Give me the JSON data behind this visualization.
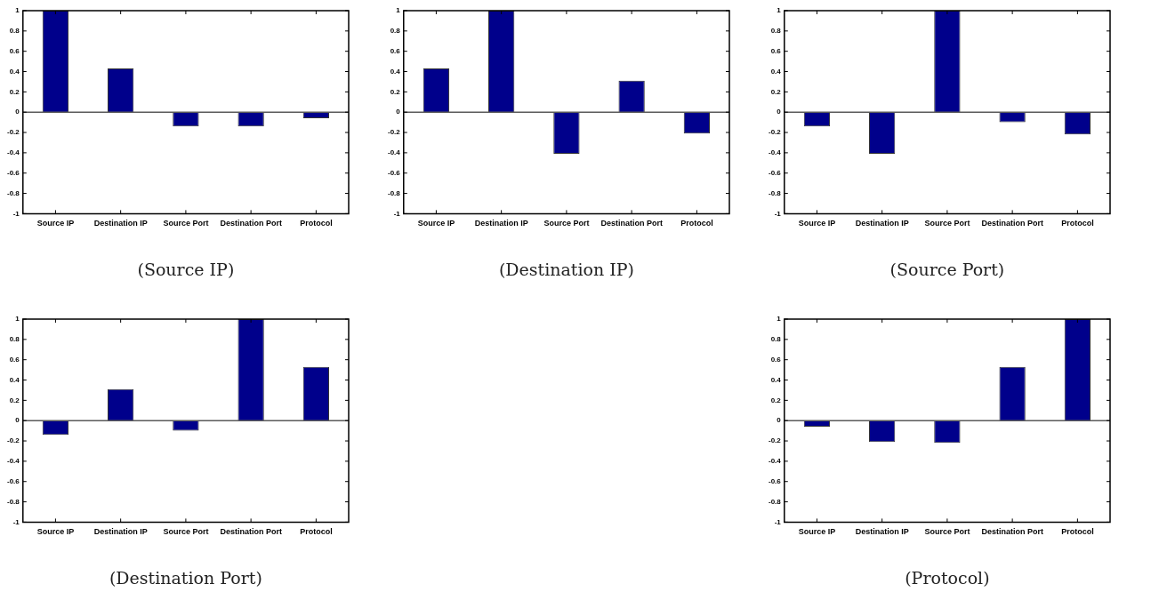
{
  "chart_data": [
    {
      "type": "bar",
      "xlabel": "(Source IP)",
      "categories": [
        "Source IP",
        "Destination IP",
        "Source Port",
        "Destination Port",
        "Protocol"
      ],
      "values": [
        1,
        0.43,
        -0.14,
        -0.14,
        -0.06
      ],
      "color": "#00008b",
      "ylim": [
        -1,
        1
      ],
      "yticks": [
        -1,
        -0.8,
        -0.6,
        -0.4,
        -0.2,
        0,
        0.2,
        0.4,
        0.6,
        0.8,
        1
      ],
      "grid": false,
      "legend": false,
      "ref_lines": [
        {
          "axis": "y",
          "value": 0,
          "color": "#5a5a5a"
        }
      ]
    },
    {
      "type": "bar",
      "xlabel": "(Destination IP)",
      "categories": [
        "Source IP",
        "Destination IP",
        "Source Port",
        "Destination Port",
        "Protocol"
      ],
      "values": [
        0.43,
        1,
        -0.41,
        0.31,
        -0.21
      ],
      "color": "#00008b",
      "ylim": [
        -1,
        1
      ],
      "yticks": [
        -1,
        -0.8,
        -0.6,
        -0.4,
        -0.2,
        0,
        0.2,
        0.4,
        0.6,
        0.8,
        1
      ],
      "grid": false,
      "legend": false,
      "ref_lines": [
        {
          "axis": "y",
          "value": 0,
          "color": "#5a5a5a"
        }
      ]
    },
    {
      "type": "bar",
      "xlabel": "(Source Port)",
      "categories": [
        "Source IP",
        "Destination IP",
        "Source Port",
        "Destination Port",
        "Protocol"
      ],
      "values": [
        -0.14,
        -0.41,
        1,
        -0.1,
        -0.22
      ],
      "color": "#00008b",
      "ylim": [
        -1,
        1
      ],
      "yticks": [
        -1,
        -0.8,
        -0.6,
        -0.4,
        -0.2,
        0,
        0.2,
        0.4,
        0.6,
        0.8,
        1
      ],
      "grid": false,
      "legend": false,
      "ref_lines": [
        {
          "axis": "y",
          "value": 0,
          "color": "#5a5a5a"
        }
      ]
    },
    {
      "type": "bar",
      "xlabel": "(Destination Port)",
      "categories": [
        "Source IP",
        "Destination IP",
        "Source Port",
        "Destination Port",
        "Protocol"
      ],
      "values": [
        -0.14,
        0.31,
        -0.1,
        1,
        0.53
      ],
      "color": "#00008b",
      "ylim": [
        -1,
        1
      ],
      "yticks": [
        -1,
        -0.8,
        -0.6,
        -0.4,
        -0.2,
        0,
        0.2,
        0.4,
        0.6,
        0.8,
        1
      ],
      "grid": false,
      "legend": false,
      "ref_lines": [
        {
          "axis": "y",
          "value": 0,
          "color": "#5a5a5a"
        }
      ]
    },
    {
      "type": "bar",
      "xlabel": "(Protocol)",
      "categories": [
        "Source IP",
        "Destination IP",
        "Source Port",
        "Destination Port",
        "Protocol"
      ],
      "values": [
        -0.06,
        -0.21,
        -0.22,
        0.53,
        1
      ],
      "color": "#00008b",
      "ylim": [
        -1,
        1
      ],
      "yticks": [
        -1,
        -0.8,
        -0.6,
        -0.4,
        -0.2,
        0,
        0.2,
        0.4,
        0.6,
        0.8,
        1
      ],
      "grid": false,
      "legend": false,
      "ref_lines": [
        {
          "axis": "y",
          "value": 0,
          "color": "#5a5a5a"
        }
      ]
    }
  ]
}
